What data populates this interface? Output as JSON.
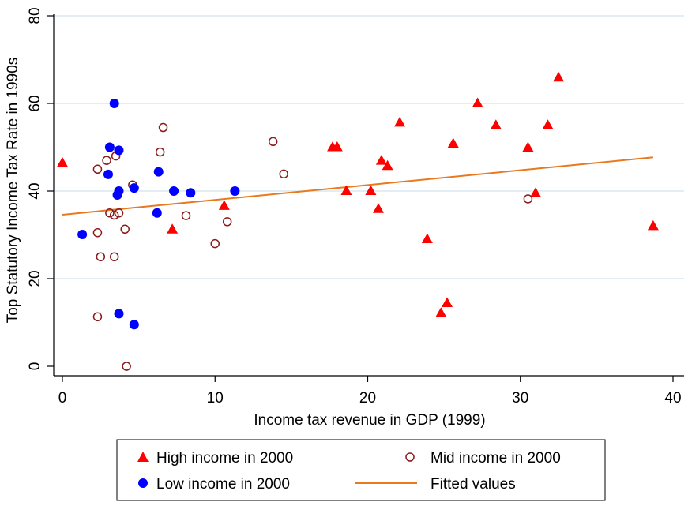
{
  "chart_data": {
    "type": "scatter",
    "title": "",
    "xlabel": "Income tax revenue in GDP (1999)",
    "ylabel": "Top Statutory Income Tax Rate in 1990s",
    "xlim": [
      0,
      40
    ],
    "ylim": [
      0,
      80
    ],
    "xticks": [
      0,
      10,
      20,
      30,
      40
    ],
    "yticks": [
      0,
      20,
      40,
      60,
      80
    ],
    "grid": "horizontal",
    "legend_position": "bottom",
    "colors": {
      "high": "#ff0000",
      "mid": "#8b1a1a",
      "low": "#0000ff",
      "fit": "#e8791f",
      "grid": "#e3eef4"
    },
    "series": [
      {
        "name": "High income in 2000",
        "marker": "triangle",
        "points": [
          [
            0,
            46.5
          ],
          [
            7.2,
            31.3
          ],
          [
            10.6,
            36.7
          ],
          [
            17.7,
            50.1
          ],
          [
            18,
            50.1
          ],
          [
            18.6,
            40.1
          ],
          [
            20.2,
            40.1
          ],
          [
            20.7,
            36
          ],
          [
            20.9,
            47
          ],
          [
            21.3,
            45.8
          ],
          [
            22.1,
            55.7
          ],
          [
            23.9,
            29.1
          ],
          [
            24.8,
            12.2
          ],
          [
            25.2,
            14.5
          ],
          [
            25.6,
            50.9
          ],
          [
            27.2,
            60.1
          ],
          [
            28.4,
            55.1
          ],
          [
            30.5,
            50
          ],
          [
            31,
            39.6
          ],
          [
            31.8,
            55.1
          ],
          [
            32.5,
            66
          ],
          [
            38.7,
            32.1
          ]
        ]
      },
      {
        "name": "Mid income in 2000",
        "marker": "hollow-circle",
        "points": [
          [
            2.3,
            45
          ],
          [
            2.3,
            30.5
          ],
          [
            2.3,
            11.3
          ],
          [
            2.5,
            25
          ],
          [
            2.9,
            47
          ],
          [
            3.1,
            35
          ],
          [
            3.4,
            25
          ],
          [
            3.4,
            34.5
          ],
          [
            3.5,
            48
          ],
          [
            3.7,
            35
          ],
          [
            4.1,
            31.3
          ],
          [
            4.2,
            0
          ],
          [
            4.6,
            41.4
          ],
          [
            6.4,
            48.9
          ],
          [
            6.6,
            54.5
          ],
          [
            8.1,
            34.4
          ],
          [
            10,
            28
          ],
          [
            10.8,
            33
          ],
          [
            13.8,
            51.3
          ],
          [
            14.5,
            43.9
          ],
          [
            30.5,
            38.2
          ]
        ]
      },
      {
        "name": "Low income in 2000",
        "marker": "filled-circle",
        "points": [
          [
            1.3,
            30.1
          ],
          [
            3,
            43.8
          ],
          [
            3.1,
            50
          ],
          [
            3.4,
            60
          ],
          [
            3.6,
            39.1
          ],
          [
            3.7,
            40
          ],
          [
            3.7,
            12
          ],
          [
            3.7,
            49.3
          ],
          [
            4.7,
            40.7
          ],
          [
            4.7,
            9.5
          ],
          [
            6.2,
            35
          ],
          [
            6.3,
            44.4
          ],
          [
            7.3,
            40
          ],
          [
            8.4,
            39.6
          ],
          [
            11.3,
            40
          ]
        ]
      },
      {
        "name": "Fitted values",
        "marker": "line",
        "points": [
          [
            0,
            34.6
          ],
          [
            38.7,
            47.7
          ]
        ]
      }
    ]
  }
}
